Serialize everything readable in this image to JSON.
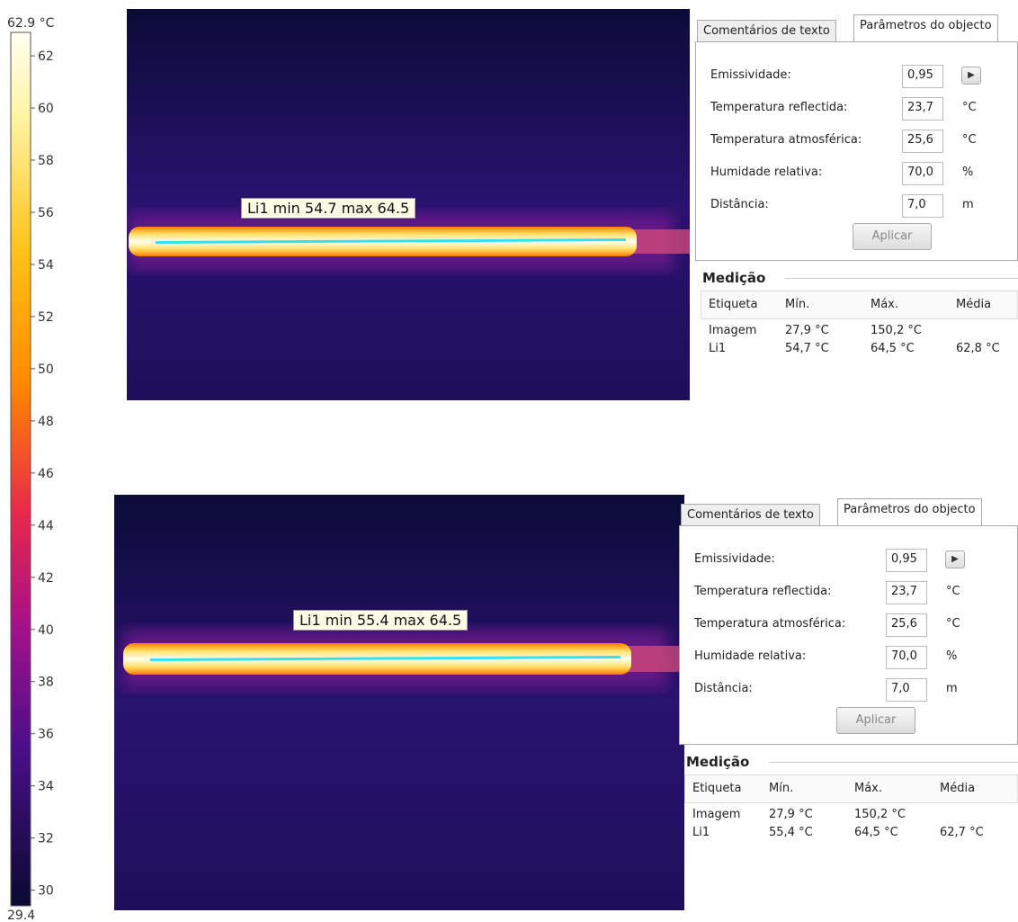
{
  "scale": {
    "top": {
      "value": 62.9,
      "label": "62.9 °C"
    },
    "bottom": 29.4,
    "ticks": [
      62,
      60,
      58,
      56,
      54,
      52,
      50,
      48,
      46,
      44,
      42,
      40,
      38,
      36,
      34,
      32,
      30
    ]
  },
  "panels": [
    {
      "overlay_label": "Li1 min 54.7 max 64.5",
      "tabs": [
        "Comentários de texto",
        "Parâmetros do objecto"
      ],
      "fields": [
        {
          "label": "Emissividade:",
          "value": "0,95"
        },
        {
          "label": "Temperatura reflectida:",
          "value": "23,7",
          "unit": "°C"
        },
        {
          "label": "Temperatura atmosférica:",
          "value": "25,6",
          "unit": "°C"
        },
        {
          "label": "Humidade relativa:",
          "value": "70,0",
          "unit": "%"
        },
        {
          "label": "Distância:",
          "value": "7,0",
          "unit": "m"
        }
      ],
      "button": "Aplicar",
      "measurement": {
        "title": "Medição",
        "headers": [
          "Etiqueta",
          "Mín.",
          "Máx.",
          "Média"
        ],
        "rows": [
          [
            "Imagem",
            "27,9 °C",
            "150,2 °C",
            ""
          ],
          [
            "Li1",
            "54,7 °C",
            "64,5 °C",
            "62,8 °C"
          ]
        ]
      }
    },
    {
      "overlay_label": "Li1 min 55.4 max 64.5",
      "tabs": [
        "Comentários de texto",
        "Parâmetros do objecto"
      ],
      "fields": [
        {
          "label": "Emissividade:",
          "value": "0,95"
        },
        {
          "label": "Temperatura reflectida:",
          "value": "23,7",
          "unit": "°C"
        },
        {
          "label": "Temperatura atmosférica:",
          "value": "25,6",
          "unit": "°C"
        },
        {
          "label": "Humidade relativa:",
          "value": "70,0",
          "unit": "%"
        },
        {
          "label": "Distância:",
          "value": "7,0",
          "unit": "m"
        }
      ],
      "button": "Aplicar",
      "measurement": {
        "title": "Medição",
        "headers": [
          "Etiqueta",
          "Mín.",
          "Máx.",
          "Média"
        ],
        "rows": [
          [
            "Imagem",
            "27,9 °C",
            "150,2 °C",
            ""
          ],
          [
            "Li1",
            "55,4 °C",
            "64,5 °C",
            "62,7 °C"
          ]
        ]
      }
    }
  ]
}
